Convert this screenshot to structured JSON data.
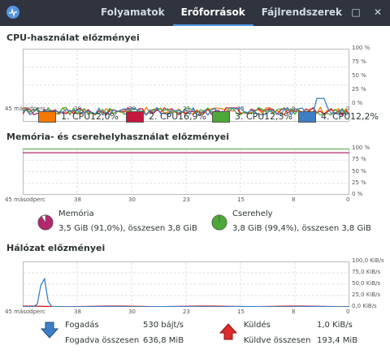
{
  "tabs": [
    {
      "label": "Folyamatok",
      "active": false
    },
    {
      "label": "Erőforrások",
      "active": true
    },
    {
      "label": "Fájlrendszerek",
      "active": false
    }
  ],
  "window_controls": {
    "minimize": "–",
    "maximize": "□",
    "close": "✕"
  },
  "cpu": {
    "title": "CPU-használat előzményei",
    "x_ticks": [
      "45 másodperc",
      "38",
      "30",
      "23",
      "15",
      "8",
      "0"
    ],
    "y_ticks": [
      "100 %",
      "75 %",
      "50 %",
      "25 %",
      "0 %"
    ],
    "legend": [
      {
        "label": "1. CPU",
        "value": "12,0%",
        "color": "#f57900"
      },
      {
        "label": "2. CPU",
        "value": "16,9%",
        "color": "#c4183c"
      },
      {
        "label": "3. CPU",
        "value": "12,3%",
        "color": "#4ca937"
      },
      {
        "label": "4. CPU",
        "value": "12,2%",
        "color": "#3c7fc4"
      }
    ]
  },
  "memory": {
    "title": "Memória- és cserehelyhasználat előzményei",
    "x_ticks": [
      "45 másodperc",
      "38",
      "30",
      "23",
      "15",
      "8",
      "0"
    ],
    "y_ticks": [
      "100 %",
      "75 %",
      "50 %",
      "25 %",
      "0 %"
    ],
    "mem_label": "Memória",
    "mem_detail": "3,5 GiB (91,0%), összesen 3,8 GiB",
    "mem_fraction": 0.91,
    "mem_color": "#b3286e",
    "swap_label": "Cserehely",
    "swap_detail": "3,8 GiB (99,4%), összesen 3,8 GiB",
    "swap_fraction": 0.994,
    "swap_color": "#4ca937"
  },
  "network": {
    "title": "Hálózat előzményei",
    "x_ticks": [
      "45 másodperc",
      "38",
      "30",
      "23",
      "15",
      "8",
      "0"
    ],
    "y_ticks": [
      "100,0 KiB/s",
      "75,0 KiB/s",
      "50,0 KiB/s",
      "25,0 KiB/s",
      "0,0 KiB/s"
    ],
    "receive_label": "Fogadás",
    "receive_rate": "530 bájt/s",
    "receive_total_label": "Fogadva összesen",
    "receive_total": "636,8 MiB",
    "receive_color": "#3c7fc4",
    "send_label": "Küldés",
    "send_rate": "1,0 KiB/s",
    "send_total_label": "Küldve összesen",
    "send_total": "193,4 MiB",
    "send_color": "#cc2222"
  }
}
